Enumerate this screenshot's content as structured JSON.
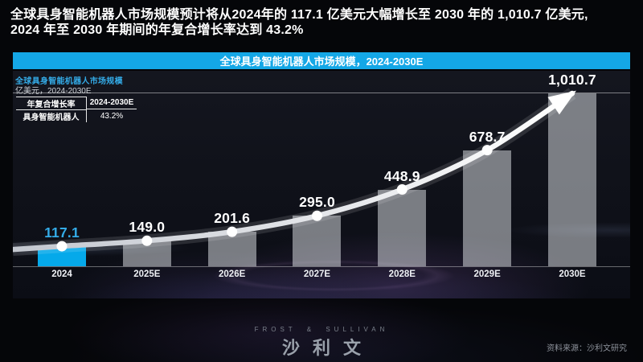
{
  "headline": {
    "line1": "全球具身智能机器人市场规模预计将从2024年的 117.1 亿美元大幅增长至 2030 年的 1,010.7 亿美元,",
    "line2": "2024 年至 2030 年期间的年复合增长率达到 43.2%"
  },
  "banner": {
    "title": "全球具身智能机器人市场规模，2024-2030E",
    "color": "#14a7e6"
  },
  "chart": {
    "title": "全球具身智能机器人市场规模",
    "subtitle": "亿美元，2024-2030E",
    "cagr_table": {
      "col1_header": "年复合增长率",
      "col2_header": "2024-2030E",
      "row_label": "具身智能机器人",
      "row_value": "43.2%"
    }
  },
  "chart_data": {
    "type": "bar",
    "title": "全球具身智能机器人市场规模，2024-2030E",
    "ylabel": "亿美元",
    "categories": [
      "2024",
      "2025E",
      "2026E",
      "2027E",
      "2028E",
      "2029E",
      "2030E"
    ],
    "values": [
      117.1,
      149.0,
      201.6,
      295.0,
      448.9,
      678.7,
      1010.7
    ],
    "value_labels": [
      "117.1",
      "149.0",
      "201.6",
      "295.0",
      "448.9",
      "678.7",
      "1,010.7"
    ],
    "cagr_2024_2030": "43.2%",
    "highlight_index": 0,
    "highlight_color": "#05a9ea",
    "bar_color": "rgba(230,233,238,0.5)",
    "trend_line": true,
    "trend_line_color": "#ffffff",
    "ylim": [
      0,
      1010.7
    ],
    "legend": "none",
    "grid": "top-max-line-only"
  },
  "footer": {
    "logo_en": "FROST & SULLIVAN",
    "logo_cn": "沙利文",
    "source": "资料来源：沙利文研究"
  }
}
